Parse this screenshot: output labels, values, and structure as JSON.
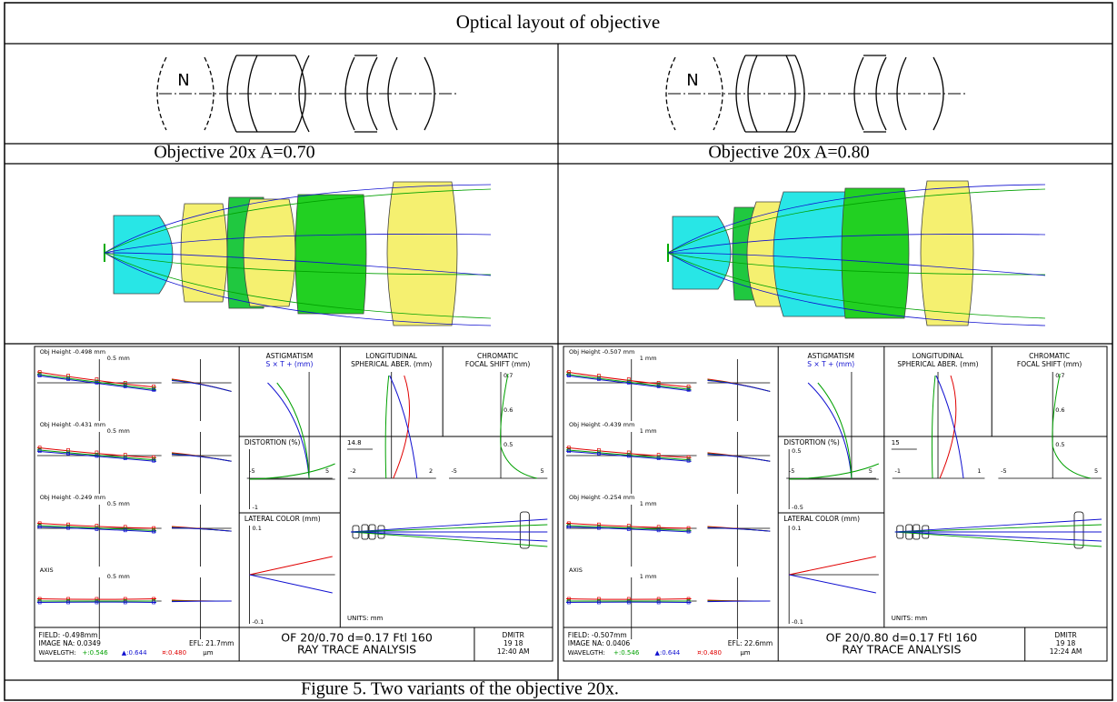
{
  "title": "Optical layout of objective",
  "variants": [
    {
      "sketch_label": "N",
      "label": "Objective 20x A=0.70",
      "analysis": {
        "fans": [
          {
            "label": "Obj Height -0.498 mm",
            "scale": "0.5 mm"
          },
          {
            "label": "Obj Height -0.431 mm",
            "scale": "0.5 mm"
          },
          {
            "label": "Obj Height -0.249 mm",
            "scale": "0.5 mm"
          },
          {
            "label": "AXIS",
            "scale": "0.5 mm"
          }
        ],
        "astigmatism": {
          "title": "ASTIGMATISM",
          "legend": "S × T + (mm)",
          "left": "-5",
          "right": "5"
        },
        "spherical": {
          "title": "LONGITUDINAL",
          "subtitle": "SPHERICAL ABER. (mm)",
          "left": "-2",
          "right": "2"
        },
        "chromatic": {
          "title": "CHROMATIC",
          "subtitle": "FOCAL SHIFT (mm)",
          "yticks": [
            "0.7",
            "0.6",
            "0.5"
          ],
          "left": "-5",
          "right": "5"
        },
        "distortion": {
          "title": "DISTORTION (%)",
          "bottom": "-1"
        },
        "lateral_color": {
          "title": "LATERAL COLOR (mm)",
          "top": "0.1",
          "bottom": "-0.1"
        },
        "layout": {
          "scale": "14.8",
          "units": "UNITS: mm"
        },
        "info": {
          "field": "FIELD: -0.498mm",
          "na": "IMAGE NA: 0.0349",
          "efl": "EFL: 21.7mm",
          "wavelength": [
            "WAVELGTH:",
            "+:0.546",
            "▲:0.644",
            "¤:0.480",
            "µm"
          ]
        },
        "header": [
          "OF 20/0.70 d=0.17  Ftl 160",
          "RAY TRACE ANALYSIS"
        ],
        "stamp": [
          "DMITR",
          "19 18",
          "12:40 AM"
        ]
      }
    },
    {
      "sketch_label": "N",
      "label": "Objective 20x A=0.80",
      "analysis": {
        "fans": [
          {
            "label": "Obj Height -0.507 mm",
            "scale": "1 mm"
          },
          {
            "label": "Obj Height -0.439 mm",
            "scale": "1 mm"
          },
          {
            "label": "Obj Height -0.254 mm",
            "scale": "1 mm"
          },
          {
            "label": "AXIS",
            "scale": "1 mm"
          }
        ],
        "astigmatism": {
          "title": "ASTIGMATISM",
          "legend": "S × T + (mm)",
          "left": "-5",
          "right": "5"
        },
        "spherical": {
          "title": "LONGITUDINAL",
          "subtitle": "SPHERICAL ABER. (mm)",
          "left": "-1",
          "right": "1"
        },
        "chromatic": {
          "title": "CHROMATIC",
          "subtitle": "FOCAL SHIFT (mm)",
          "yticks": [
            "0.7",
            "0.6",
            "0.5"
          ],
          "left": "-5",
          "right": "5"
        },
        "distortion": {
          "title": "DISTORTION (%)",
          "top": "0.5",
          "bottom": "-0.5"
        },
        "lateral_color": {
          "title": "LATERAL COLOR (mm)",
          "top": "0.1",
          "bottom": "-0.1"
        },
        "layout": {
          "scale": "15",
          "units": "UNITS: mm"
        },
        "info": {
          "field": "FIELD: -0.507mm",
          "na": "IMAGE NA: 0.0406",
          "efl": "EFL: 22.6mm",
          "wavelength": [
            "WAVELGTH:",
            "+:0.546",
            "▲:0.644",
            "¤:0.480",
            "µm"
          ]
        },
        "header": [
          "OF 20/0.80 d=0.17  Ftl 160",
          "RAY TRACE ANALYSIS"
        ],
        "stamp": [
          "DMITR",
          "19 18",
          "12:24 AM"
        ]
      }
    }
  ],
  "caption": "Figure 5. Two variants of the objective 20x."
}
